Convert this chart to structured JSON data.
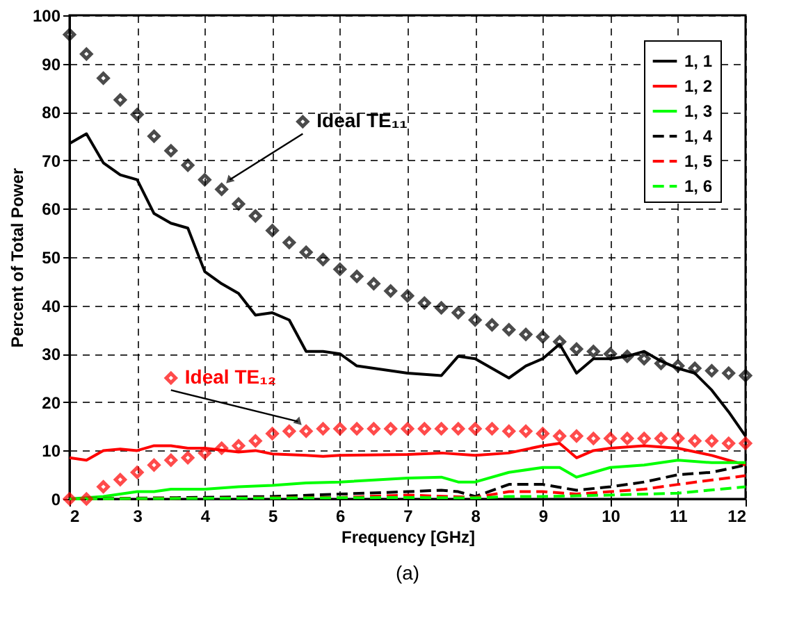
{
  "chart_data": {
    "type": "line",
    "xlabel": "Frequency [GHz]",
    "ylabel": "Percent of Total Power",
    "annotations": [
      "(a)"
    ],
    "xlim": [
      2,
      12
    ],
    "xticks": [
      2,
      3,
      4,
      5,
      6,
      7,
      8,
      9,
      10,
      11,
      12
    ],
    "ylim": [
      0,
      100
    ],
    "yticks": [
      0,
      10,
      20,
      30,
      40,
      50,
      60,
      70,
      80,
      90,
      100
    ],
    "grid": true,
    "legend": "top right",
    "series": [
      {
        "name": "1, 1",
        "color": "#000000",
        "line_style": "solid",
        "x": [
          2,
          2.25,
          2.5,
          2.75,
          3,
          3.25,
          3.5,
          3.75,
          4,
          4.25,
          4.5,
          4.75,
          5,
          5.25,
          5.5,
          5.75,
          6,
          6.25,
          6.5,
          7,
          7.5,
          7.75,
          8,
          8.5,
          8.75,
          9,
          9.25,
          9.5,
          9.75,
          10,
          10.25,
          10.5,
          10.75,
          11,
          11.25,
          11.5,
          11.75,
          12
        ],
        "values": [
          73.5,
          75.5,
          69.5,
          67,
          66,
          59,
          57,
          56,
          47,
          44.5,
          42.5,
          38,
          38.5,
          37,
          30.5,
          30.5,
          30,
          27.5,
          27,
          26,
          25.5,
          29.5,
          29,
          25,
          27.5,
          29,
          32,
          26,
          29,
          29,
          29.5,
          30.5,
          28.5,
          27,
          26,
          22.5,
          18,
          13
        ]
      },
      {
        "name": "1, 2",
        "color": "#ff0000",
        "line_style": "solid",
        "x": [
          2,
          2.25,
          2.5,
          2.75,
          3,
          3.25,
          3.5,
          3.75,
          4,
          4.5,
          4.75,
          5,
          5.5,
          5.75,
          6,
          7,
          7.5,
          8,
          8.5,
          9,
          9.25,
          9.5,
          9.75,
          10,
          10.5,
          11,
          11.5,
          12
        ],
        "values": [
          8.5,
          8,
          10,
          10.3,
          10,
          11,
          11,
          10.5,
          10.5,
          9.7,
          10,
          9.3,
          9,
          8.8,
          9,
          9.2,
          9.5,
          9,
          9.5,
          11,
          11.5,
          8.5,
          10,
          10.5,
          11,
          10.5,
          9,
          7
        ]
      },
      {
        "name": "1, 3",
        "color": "#00ff00",
        "line_style": "solid",
        "x": [
          2,
          2.5,
          3,
          3.25,
          3.5,
          4,
          4.5,
          5,
          5.5,
          6,
          7,
          7.5,
          7.75,
          8,
          8.5,
          9,
          9.25,
          9.5,
          9.75,
          10,
          10.5,
          11,
          11.5,
          12
        ],
        "values": [
          0,
          0.5,
          1.5,
          1.5,
          2,
          2,
          2.5,
          2.8,
          3.3,
          3.5,
          4.3,
          4.5,
          3.5,
          3.5,
          5.5,
          6.5,
          6.5,
          4.5,
          5.5,
          6.5,
          7,
          8,
          7.5,
          7.5
        ]
      },
      {
        "name": "1, 4",
        "color": "#000000",
        "line_style": "dashed",
        "x": [
          2,
          5,
          6,
          7,
          7.5,
          7.75,
          8,
          8.5,
          9,
          9.5,
          10,
          10.5,
          11,
          11.5,
          12
        ],
        "values": [
          0,
          0.5,
          1,
          1.5,
          1.8,
          1.5,
          0.5,
          3,
          3,
          1.8,
          2.5,
          3.5,
          5,
          5.5,
          7
        ]
      },
      {
        "name": "1, 5",
        "color": "#ff0000",
        "line_style": "dashed",
        "x": [
          2,
          6,
          7,
          8,
          8.5,
          9,
          9.5,
          10,
          10.5,
          11,
          12
        ],
        "values": [
          0,
          0.3,
          0.8,
          0.3,
          1.5,
          1.5,
          1,
          1.5,
          2,
          3,
          4.8
        ]
      },
      {
        "name": "1, 6",
        "color": "#00ff00",
        "line_style": "dashed",
        "x": [
          2,
          7,
          8,
          8.5,
          9,
          10,
          11,
          12
        ],
        "values": [
          0,
          0.3,
          0.2,
          0.5,
          0.5,
          0.8,
          1.2,
          2.5
        ]
      },
      {
        "name": "Ideal TE₁₁",
        "type": "scatter",
        "marker": "diamond",
        "color": "#000000",
        "x": [
          2,
          2.25,
          2.5,
          2.75,
          3,
          3.25,
          3.5,
          3.75,
          4,
          4.25,
          4.5,
          4.75,
          5,
          5.25,
          5.5,
          5.75,
          6,
          6.25,
          6.5,
          6.75,
          7,
          7.25,
          7.5,
          7.75,
          8,
          8.25,
          8.5,
          8.75,
          9,
          9.25,
          9.5,
          9.75,
          10,
          10.25,
          10.5,
          10.75,
          11,
          11.25,
          11.5,
          11.75,
          12
        ],
        "values": [
          96,
          92,
          87,
          82.5,
          79.5,
          75,
          72,
          69,
          66,
          64,
          61,
          58.5,
          55.5,
          53,
          51,
          49.5,
          47.5,
          46,
          44.5,
          43,
          42,
          40.5,
          39.5,
          38.5,
          37,
          36,
          35,
          34,
          33.5,
          32.5,
          31,
          30.5,
          30,
          29.5,
          29,
          28,
          27.5,
          27,
          26.5,
          26,
          25.5
        ]
      },
      {
        "name": "Ideal TE₁₂",
        "type": "scatter",
        "marker": "diamond",
        "color": "#ff0000",
        "x": [
          2,
          2.25,
          2.5,
          2.75,
          3,
          3.25,
          3.5,
          3.75,
          4,
          4.25,
          4.5,
          4.75,
          5,
          5.25,
          5.5,
          5.75,
          6,
          6.25,
          6.5,
          6.75,
          7,
          7.25,
          7.5,
          7.75,
          8,
          8.25,
          8.5,
          8.75,
          9,
          9.25,
          9.5,
          9.75,
          10,
          10.25,
          10.5,
          10.75,
          11,
          11.25,
          11.5,
          11.75,
          12
        ],
        "values": [
          0,
          0,
          2.5,
          4,
          5.5,
          7,
          8,
          8.5,
          9.5,
          10.5,
          11,
          12,
          13.5,
          14,
          14,
          14.5,
          14.5,
          14.5,
          14.5,
          14.5,
          14.5,
          14.5,
          14.5,
          14.5,
          14.5,
          14.5,
          14,
          14,
          13.5,
          13,
          13,
          12.5,
          12.5,
          12.5,
          12.5,
          12.5,
          12.5,
          12,
          12,
          11.5,
          11.5
        ]
      }
    ]
  }
}
